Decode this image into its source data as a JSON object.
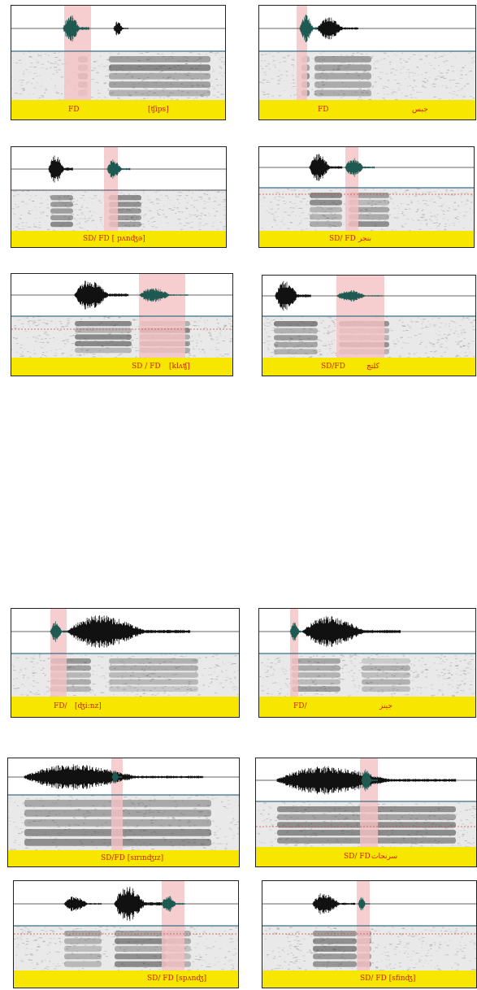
{
  "colors": {
    "caption_bg": "#f7e600",
    "caption_text": "#cc2200",
    "highlight": "#f4c2c4",
    "wave": "#111111",
    "wave_highlight": "#1f5a52",
    "divider": "#3a6f86",
    "formant_line": "#d64b4b"
  },
  "panels": [
    {
      "id": "p1",
      "label_a": "FD",
      "label_b": "[ʧips]"
    },
    {
      "id": "p2",
      "label_a": "FD",
      "label_b": "جبس"
    },
    {
      "id": "p3",
      "label_a": "SD/ FD [ pʌnʤə]",
      "label_b": ""
    },
    {
      "id": "p4",
      "label_a": "SD/ FD",
      "label_b": "بنجر"
    },
    {
      "id": "p5",
      "label_a": "SD / FD",
      "label_b": "[klʌʧ]"
    },
    {
      "id": "p6",
      "label_a": "SD/FD",
      "label_b": "كلتج"
    },
    {
      "id": "p7",
      "label_a": "FD/",
      "label_b": "[ʤi:nz]"
    },
    {
      "id": "p8",
      "label_a": "FD/",
      "label_b": "جينز"
    },
    {
      "id": "p9",
      "label_a": "SD/FD [sɪrɪnʤɪz]",
      "label_b": ""
    },
    {
      "id": "p10",
      "label_a": "SD/ FD",
      "label_b": "سرنجات"
    },
    {
      "id": "p11",
      "label_a": "SD/ FD [spʌnʤ]",
      "label_b": ""
    },
    {
      "id": "p12",
      "label_a": "SD/ FD [sfinʤ]",
      "label_b": ""
    }
  ]
}
